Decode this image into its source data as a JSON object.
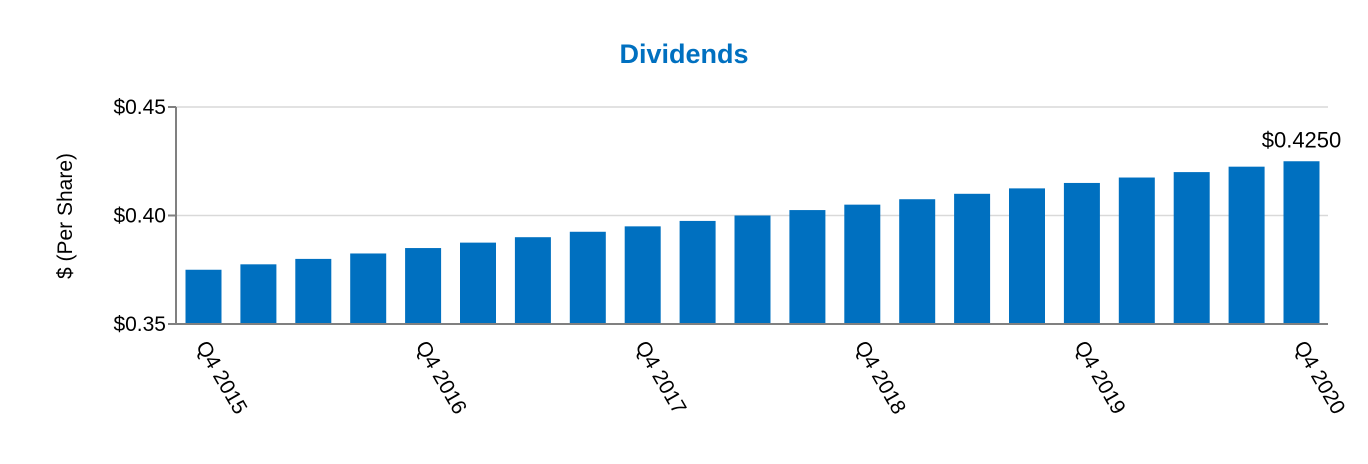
{
  "chart_data": {
    "type": "bar",
    "title": "Dividends",
    "ylabel": "$ (Per Share)",
    "xlabel": "",
    "ylim": [
      0.35,
      0.45
    ],
    "yticks": [
      {
        "value": 0.35,
        "label": "$0.35"
      },
      {
        "value": 0.4,
        "label": "$0.40"
      },
      {
        "value": 0.45,
        "label": "$0.45"
      }
    ],
    "grid": true,
    "legend": "none",
    "categories": [
      "Q4 2015",
      "Q1 2016",
      "Q2 2016",
      "Q3 2016",
      "Q4 2016",
      "Q1 2017",
      "Q2 2017",
      "Q3 2017",
      "Q4 2017",
      "Q1 2018",
      "Q2 2018",
      "Q3 2018",
      "Q4 2018",
      "Q1 2019",
      "Q2 2019",
      "Q3 2019",
      "Q4 2019",
      "Q1 2020",
      "Q2 2020",
      "Q3 2020",
      "Q4 2020"
    ],
    "x_tick_labels": [
      "Q4 2015",
      "",
      "",
      "",
      "Q4 2016",
      "",
      "",
      "",
      "Q4 2017",
      "",
      "",
      "",
      "Q4 2018",
      "",
      "",
      "",
      "Q4 2019",
      "",
      "",
      "",
      "Q4 2020"
    ],
    "values": [
      0.375,
      0.3775,
      0.38,
      0.3825,
      0.385,
      0.3875,
      0.39,
      0.3925,
      0.395,
      0.3975,
      0.4,
      0.4025,
      0.405,
      0.4075,
      0.41,
      0.4125,
      0.415,
      0.4175,
      0.42,
      0.4225,
      0.425
    ],
    "data_labels": [
      {
        "index": 20,
        "label": "$0.4250"
      }
    ],
    "colors": {
      "bar": "#0070c0",
      "title": "#0070c0",
      "axis": "#808080",
      "grid": "#d9d9d9"
    }
  }
}
